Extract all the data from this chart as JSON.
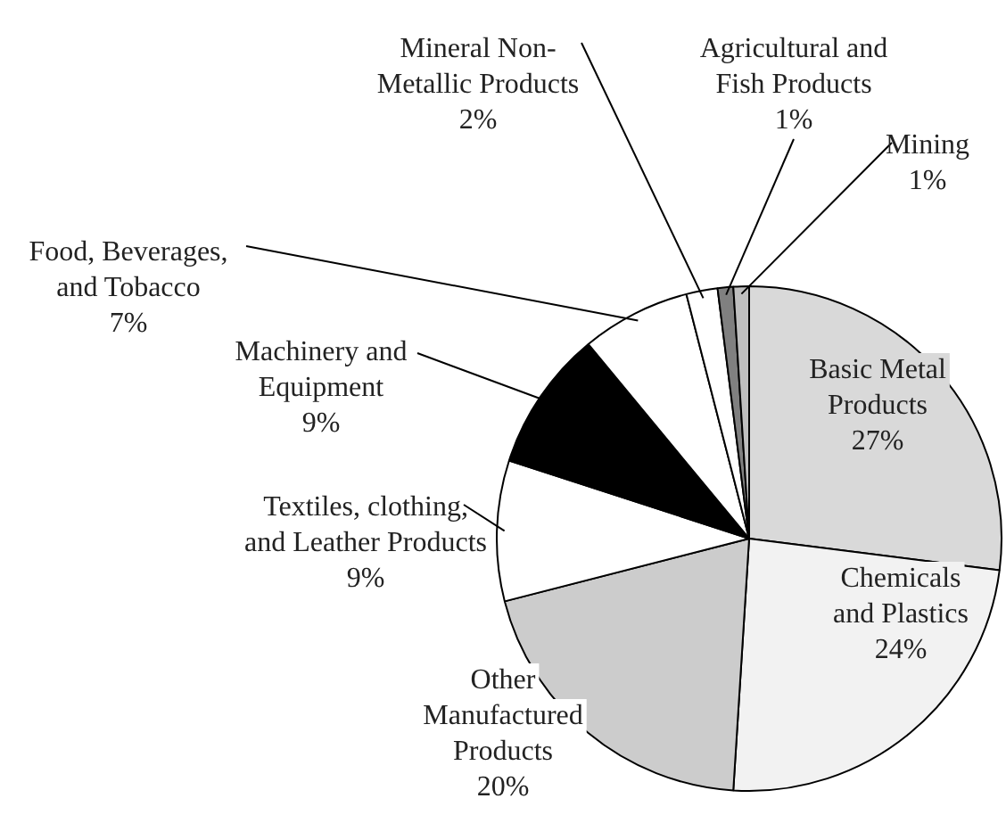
{
  "chart_data": {
    "type": "pie",
    "categories": [
      "Basic Metal Products",
      "Chemicals and Plastics",
      "Other Manufactured Products",
      "Textiles, clothing, and Leather Products",
      "Machinery and Equipment",
      "Food, Beverages, and Tobacco",
      "Mineral Non-Metallic Products",
      "Agricultural and Fish Products",
      "Mining"
    ],
    "values": [
      27,
      24,
      20,
      9,
      9,
      7,
      2,
      1,
      1
    ],
    "value_labels": [
      "27%",
      "24%",
      "20%",
      "9%",
      "9%",
      "7%",
      "2%",
      "1%",
      "1%"
    ],
    "colors": [
      "#d9d9d9",
      "#f2f2f2",
      "#cccccc",
      "#ffffff",
      "#000000",
      "#ffffff",
      "#ffffff",
      "#808080",
      "#bfbfbf"
    ],
    "legend": false
  }
}
